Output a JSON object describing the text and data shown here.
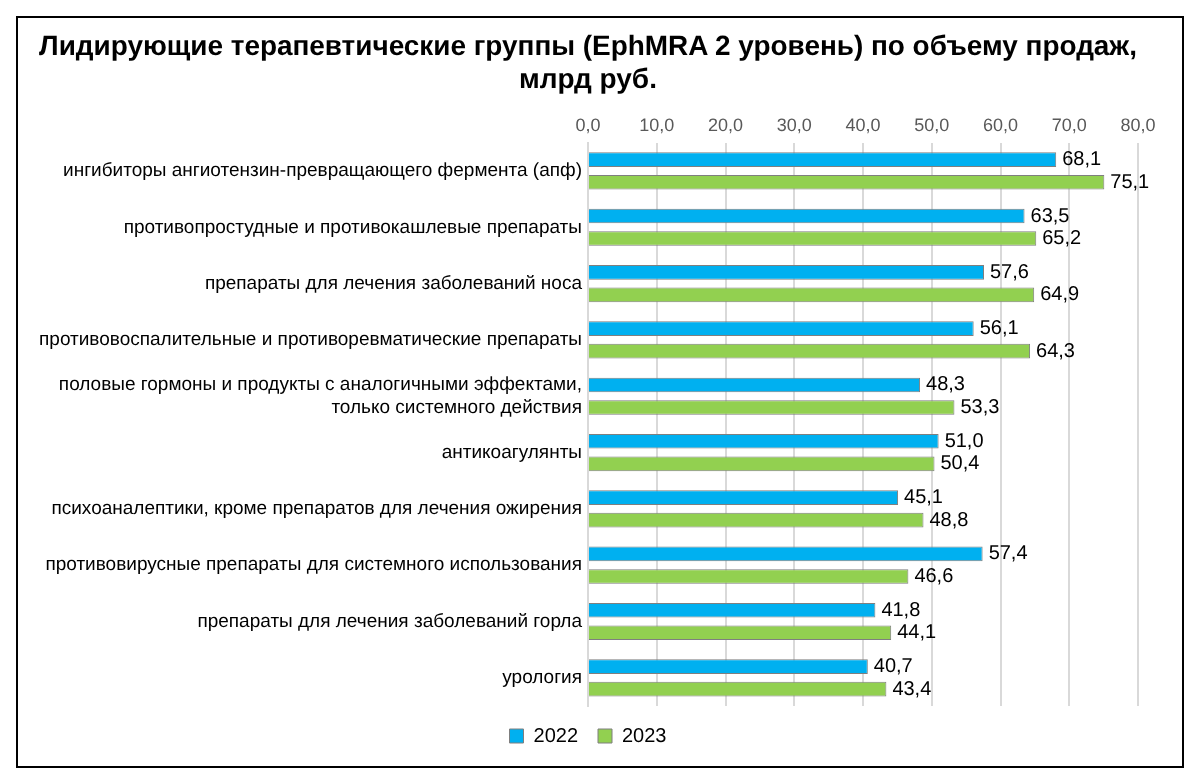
{
  "chart_data": {
    "type": "bar",
    "orientation": "horizontal",
    "title": "Лидирующие терапевтические группы (EphMRA 2 уровень) по объему продаж, млрд руб.",
    "categories": [
      "ингибиторы ангиотензин-превращающего фермента (апф)",
      "противопростудные и противокашлевые препараты",
      "препараты для лечения заболеваний носа",
      "противовоспалительные и противоревматические препараты",
      "половые гормоны и продукты с аналогичными эффектами, только системного действия",
      "антикоагулянты",
      "психоаналептики, кроме препаратов для лечения ожирения",
      "противовирусные препараты для системного использования",
      "препараты для лечения заболеваний горла",
      "урология"
    ],
    "series": [
      {
        "name": "2022",
        "color": "#00b0f0",
        "values": [
          68.1,
          63.5,
          57.6,
          56.1,
          48.3,
          51.0,
          45.1,
          57.4,
          41.8,
          40.7
        ],
        "value_labels": [
          "68,1",
          "63,5",
          "57,6",
          "56,1",
          "48,3",
          "51,0",
          "45,1",
          "57,4",
          "41,8",
          "40,7"
        ]
      },
      {
        "name": "2023",
        "color": "#92d050",
        "values": [
          75.1,
          65.2,
          64.9,
          64.3,
          53.3,
          50.4,
          48.8,
          46.6,
          44.1,
          43.4
        ],
        "value_labels": [
          "75,1",
          "65,2",
          "64,9",
          "64,3",
          "53,3",
          "50,4",
          "48,8",
          "46,6",
          "44,1",
          "43,4"
        ]
      }
    ],
    "xlim": [
      0,
      80
    ],
    "xticks": [
      {
        "value": 0,
        "label": "0,0"
      },
      {
        "value": 10,
        "label": "10,0"
      },
      {
        "value": 20,
        "label": "20,0"
      },
      {
        "value": 30,
        "label": "30,0"
      },
      {
        "value": 40,
        "label": "40,0"
      },
      {
        "value": 50,
        "label": "50,0"
      },
      {
        "value": 60,
        "label": "60,0"
      },
      {
        "value": 70,
        "label": "70,0"
      },
      {
        "value": 80,
        "label": "80,0"
      }
    ],
    "grid": "x",
    "legend": "bottom"
  }
}
